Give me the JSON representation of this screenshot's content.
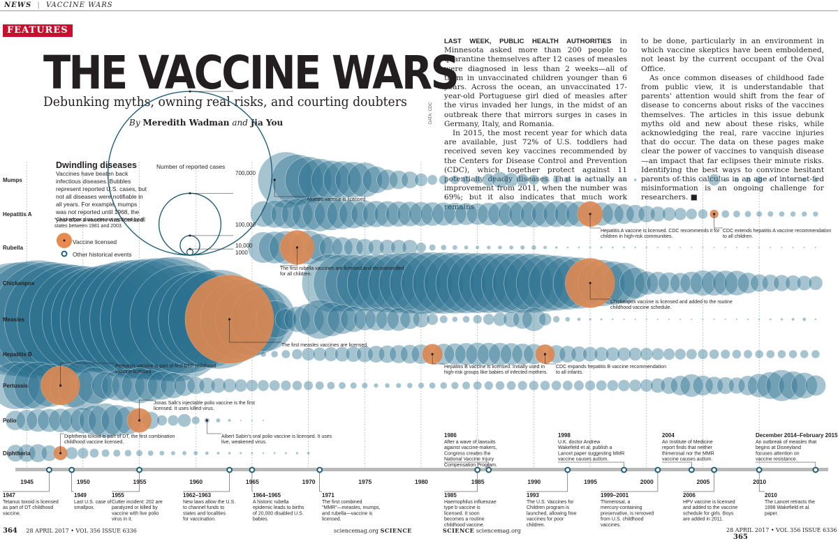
{
  "topbar": {
    "section": "NEWS",
    "divider": "|",
    "title": "VACCINE WARS"
  },
  "feature_tag": "FEATURES",
  "headline": "THE VACCINE WARS",
  "deck": "Debunking myths, owning real risks, and courting doubters",
  "byline": {
    "by": "By",
    "author1": "Meredith Wadman",
    "and": "and",
    "author2": "Jia You"
  },
  "body": {
    "lead_in": "LAST WEEK, PUBLIC HEALTH AUTHORITIES",
    "col1_p1_rest": " in Minnesota asked more than 200 people to quarantine themselves after 12 cases of measles were diagnosed in less than 2 weeks—all of them in unvaccinated children younger than 6 years. Across the ocean, an unvaccinated 17-year-old Portuguese girl died of measles after the virus invaded her lungs, in the midst of an outbreak there that mirrors surges in cases in Germany, Italy, and Romania.",
    "col1_p2": "In 2015, the most recent year for which data are available, just 72% of U.S. toddlers had received seven key vaccines recommended by the Centers for Disease Control and Prevention (CDC), which together protect against 11 potentially deadly diseases. That is actually an improvement from 2011, when the number was 69%; but it also indicates that much work remains",
    "col2_p1": "to be done, particularly in an environment in which vaccine skeptics have been emboldened, not least by the current occupant of the Oval Office.",
    "col2_p2": "As once common diseases of childhood fade from public view, it is understandable that parents' attention would shift from the fear of disease to concerns about risks of the vaccines themselves. The articles in this issue debunk myths old and new about these risks, while acknowledging the real, rare vaccine injuries that do occur. The data on these pages make clear the power of vaccines to vanquish disease—an impact that far eclipses their minute risks. Identifying the best ways to convince hesitant parents of this calculus in an age of internet-fed misinformation is an ongoing challenge for researchers.",
    "end_mark": "■",
    "credit": "DATA: CDC"
  },
  "legend": {
    "title": "Dwindling diseases",
    "description": "Vaccines have beaten back infectious diseases. Bubbles represent reported U.S. cases, but not all diseases were notifiable in all years. For example, mumps was not reported until 1968, the year after a vaccine was licensed.",
    "note": "*Chickenpox data were not reported by all states between 1981 and 2003.",
    "size_key_title": "Number of reported cases",
    "size_key_labels": [
      "700,000",
      "100,000",
      "10,000",
      "1000"
    ],
    "licensed_label": "Vaccine licensed",
    "events_label": "Other historical events"
  },
  "colors": {
    "bubble": "#2c6f8f",
    "bubble_light": "#a9c6d3",
    "licensed": "#e8894e",
    "timeline": "#b9b9b9",
    "event_ring": "#1f5f7a",
    "dashline": "#8fa9b6"
  },
  "footer": {
    "left_page": "364",
    "left_issue": "28 APRIL 2017 • VOL 356 ISSUE 6336",
    "left_site": "sciencemag.org",
    "left_brand": "SCIENCE",
    "right_brand": "SCIENCE",
    "right_site": "sciencemag.org",
    "right_issue": "28 APRIL 2017 • VOL 356 ISSUE 6336",
    "right_page": "365"
  },
  "chart_data": {
    "type": "scatter",
    "title": "Dwindling diseases",
    "x_range": [
      1944,
      2016
    ],
    "x_ticks": [
      1945,
      1950,
      1955,
      1960,
      1965,
      1970,
      1975,
      1980,
      1985,
      1990,
      1995,
      2000,
      2005,
      2010
    ],
    "size_scale_cases": [
      700000,
      100000,
      10000,
      1000
    ],
    "diseases": [
      {
        "name": "Mumps",
        "start": 1968,
        "end": 2015,
        "anchors": [
          [
            1968,
            152209
          ],
          [
            1970,
            104953
          ],
          [
            1972,
            74215
          ],
          [
            1975,
            59647
          ],
          [
            1977,
            21436
          ],
          [
            1979,
            14255
          ],
          [
            1981,
            4941
          ],
          [
            1985,
            2982
          ],
          [
            1986,
            7790
          ],
          [
            1987,
            12848
          ],
          [
            1990,
            5292
          ],
          [
            1993,
            1692
          ],
          [
            1996,
            751
          ],
          [
            2000,
            338
          ],
          [
            2005,
            314
          ],
          [
            2006,
            6584
          ],
          [
            2007,
            800
          ],
          [
            2010,
            2612
          ],
          [
            2012,
            229
          ],
          [
            2014,
            1223
          ],
          [
            2015,
            1329
          ]
        ]
      },
      {
        "name": "Hepatitis A",
        "start": 1966,
        "end": 2015,
        "anchors": [
          [
            1966,
            32859
          ],
          [
            1971,
            59606
          ],
          [
            1975,
            35855
          ],
          [
            1980,
            29087
          ],
          [
            1985,
            23210
          ],
          [
            1989,
            35821
          ],
          [
            1995,
            31582
          ],
          [
            1999,
            17047
          ],
          [
            2003,
            7653
          ],
          [
            2006,
            3579
          ],
          [
            2010,
            1670
          ],
          [
            2015,
            1390
          ]
        ]
      },
      {
        "name": "Rubella",
        "start": 1966,
        "end": 2015,
        "anchors": [
          [
            1966,
            46975
          ],
          [
            1969,
            57686
          ],
          [
            1970,
            56552
          ],
          [
            1972,
            25507
          ],
          [
            1976,
            12491
          ],
          [
            1979,
            11795
          ],
          [
            1981,
            2077
          ],
          [
            1985,
            630
          ],
          [
            1990,
            1125
          ],
          [
            1993,
            192
          ],
          [
            1996,
            238
          ],
          [
            2000,
            176
          ],
          [
            2004,
            10
          ],
          [
            2010,
            5
          ],
          [
            2015,
            5
          ]
        ]
      },
      {
        "name": "Chickenpox",
        "start": 1972,
        "end": 2015,
        "anchors": [
          [
            1972,
            164114
          ],
          [
            1975,
            154248
          ],
          [
            1980,
            190894
          ],
          [
            1985,
            178162
          ],
          [
            1990,
            173099
          ],
          [
            1995,
            120624
          ],
          [
            1998,
            82455
          ],
          [
            2000,
            27382
          ],
          [
            2003,
            20948
          ],
          [
            2005,
            32242
          ],
          [
            2008,
            30386
          ],
          [
            2010,
            15427
          ],
          [
            2012,
            13304
          ],
          [
            2015,
            9789
          ]
        ]
      },
      {
        "name": "Measles",
        "start": 1944,
        "end": 2015,
        "anchors": [
          [
            1944,
            630291
          ],
          [
            1946,
            683077
          ],
          [
            1948,
            615104
          ],
          [
            1951,
            530118
          ],
          [
            1954,
            683077
          ],
          [
            1958,
            763094
          ],
          [
            1960,
            441703
          ],
          [
            1962,
            481530
          ],
          [
            1963,
            385156
          ],
          [
            1965,
            261904
          ],
          [
            1966,
            204136
          ],
          [
            1968,
            22231
          ],
          [
            1970,
            47351
          ],
          [
            1971,
            75290
          ],
          [
            1975,
            24374
          ],
          [
            1978,
            26871
          ],
          [
            1980,
            13506
          ],
          [
            1983,
            1497
          ],
          [
            1986,
            6282
          ],
          [
            1989,
            18193
          ],
          [
            1990,
            27786
          ],
          [
            1992,
            2237
          ],
          [
            1995,
            309
          ],
          [
            2000,
            86
          ],
          [
            2005,
            66
          ],
          [
            2008,
            140
          ],
          [
            2011,
            220
          ],
          [
            2014,
            667
          ],
          [
            2015,
            188
          ]
        ]
      },
      {
        "name": "Hepatitis B",
        "start": 1966,
        "end": 2015,
        "anchors": [
          [
            1966,
            1497
          ],
          [
            1970,
            8310
          ],
          [
            1975,
            13121
          ],
          [
            1980,
            19015
          ],
          [
            1985,
            26611
          ],
          [
            1987,
            25916
          ],
          [
            1990,
            21102
          ],
          [
            1995,
            10805
          ],
          [
            2000,
            8036
          ],
          [
            2005,
            5119
          ],
          [
            2010,
            3350
          ],
          [
            2015,
            3370
          ]
        ]
      },
      {
        "name": "Pertussis",
        "start": 1944,
        "end": 2015,
        "anchors": [
          [
            1944,
            109873
          ],
          [
            1946,
            109860
          ],
          [
            1948,
            74715
          ],
          [
            1950,
            120718
          ],
          [
            1952,
            37129
          ],
          [
            1955,
            62786
          ],
          [
            1958,
            32148
          ],
          [
            1960,
            14809
          ],
          [
            1965,
            6799
          ],
          [
            1970,
            4249
          ],
          [
            1975,
            1738
          ],
          [
            1976,
            1010
          ],
          [
            1980,
            1730
          ],
          [
            1985,
            3589
          ],
          [
            1990,
            4570
          ],
          [
            1995,
            5137
          ],
          [
            2000,
            7867
          ],
          [
            2004,
            25827
          ],
          [
            2006,
            15632
          ],
          [
            2008,
            13278
          ],
          [
            2010,
            27550
          ],
          [
            2012,
            48277
          ],
          [
            2014,
            32971
          ],
          [
            2015,
            20762
          ]
        ]
      },
      {
        "name": "Polio",
        "start": 1944,
        "end": 1966,
        "anchors": [
          [
            1944,
            19029
          ],
          [
            1946,
            25698
          ],
          [
            1948,
            27726
          ],
          [
            1950,
            33300
          ],
          [
            1952,
            57879
          ],
          [
            1954,
            38476
          ],
          [
            1955,
            28985
          ],
          [
            1956,
            15140
          ],
          [
            1957,
            5485
          ],
          [
            1958,
            5787
          ],
          [
            1959,
            8425
          ],
          [
            1960,
            3190
          ],
          [
            1961,
            1312
          ],
          [
            1962,
            910
          ],
          [
            1963,
            449
          ],
          [
            1964,
            122
          ],
          [
            1965,
            72
          ],
          [
            1966,
            113
          ]
        ]
      },
      {
        "name": "Diphtheria",
        "start": 1944,
        "end": 1970,
        "anchors": [
          [
            1944,
            14150
          ],
          [
            1946,
            16354
          ],
          [
            1948,
            9493
          ],
          [
            1950,
            5796
          ],
          [
            1952,
            2960
          ],
          [
            1955,
            1984
          ],
          [
            1958,
            918
          ],
          [
            1960,
            918
          ],
          [
            1962,
            444
          ],
          [
            1964,
            293
          ],
          [
            1966,
            209
          ],
          [
            1968,
            260
          ],
          [
            1970,
            435
          ]
        ]
      }
    ],
    "vaccine_licensed": [
      {
        "disease": "Mumps",
        "year": 1967,
        "label": "Mumps vaccine is licensed.",
        "marker": "dot"
      },
      {
        "disease": "Hepatitis A",
        "year": 1995,
        "label": "Hepatitis A vaccine is licensed. CDC recommends it for children in high-risk communities."
      },
      {
        "disease": "Hepatitis A",
        "year": 2006,
        "label": "CDC extends hepatitis A vaccine recommendation to all children."
      },
      {
        "disease": "Rubella",
        "year": 1969,
        "label": "The first rubella vaccines are licensed and recommended for all children."
      },
      {
        "disease": "Chickenpox",
        "year": 1995,
        "label": "Chickenpox vaccine is licensed and added to the routine childhood vaccine schedule."
      },
      {
        "disease": "Measles",
        "year": 1963,
        "label": "The first measles vaccines are licensed."
      },
      {
        "disease": "Hepatitis B",
        "year": 1981,
        "label": "Hepatitis B vaccine is licensed. Initially used in high-risk groups like babies of infected mothers."
      },
      {
        "disease": "Hepatitis B",
        "year": 1991,
        "label": "CDC expands hepatitis B vaccine recommendation to all infants."
      },
      {
        "disease": "Pertussis",
        "year": 1948,
        "label": "Pertussis vaccine is part of first DTP childhood vaccine licensed."
      },
      {
        "disease": "Polio",
        "year": 1955,
        "label": "Jonas Salk's injectable polio vaccine is the first licensed. It uses killed virus."
      },
      {
        "disease": "Polio",
        "year": 1961,
        "label": "Albert Sabin's oral polio vaccine is licensed. It uses live, weakened virus.",
        "marker": "dot"
      },
      {
        "disease": "Diphtheria",
        "year": 1948,
        "label": "Diphtheria toxoid is part of DT, the first combination childhood vaccine licensed."
      }
    ],
    "historical_events": [
      {
        "year": 1947,
        "date": "1947",
        "text": "Tetanus toxoid is licensed as part of DT childhood vaccine."
      },
      {
        "year": 1949,
        "date": "1949",
        "text": "Last U.S. case of smallpox."
      },
      {
        "year": 1955,
        "date": "1955",
        "text": "Cutter incident: 202 are paralyzed or killed by vaccine with live polio virus in it."
      },
      {
        "year": 1963,
        "date": "1962–1963",
        "text": "New laws allow the U.S. to channel funds to states and localities for vaccination."
      },
      {
        "year": 1965,
        "date": "1964–1965",
        "text": "A historic rubella epidemic leads to births of 20,000 disabled U.S. babies."
      },
      {
        "year": 1971,
        "date": "1971",
        "text": "The first combined \"MMR\"—measles, mumps, and rubella—vaccine is licensed."
      },
      {
        "year": 1985,
        "date": "1985",
        "text": "Haemophilus influenzae type b vaccine is licensed. It soon becomes a routine childhood vaccine."
      },
      {
        "year": 1986,
        "date": "1986",
        "text": "After a wave of lawsuits against vaccine-makers, Congress creates the National Vaccine Injury Compensation Program."
      },
      {
        "year": 1993,
        "date": "1993",
        "text": "The U.S. Vaccines for Children program is launched, allowing free vaccines for poor children."
      },
      {
        "year": 1998,
        "date": "1998",
        "text": "U.K. doctor Andrew Wakefield et al. publish a Lancet paper suggesting MMR vaccine causes autism."
      },
      {
        "year": 2001,
        "date": "1999–2001",
        "text": "Thimerosal, a mercury-containing preservative, is removed from U.S. childhood vaccines."
      },
      {
        "year": 2004,
        "date": "2004",
        "text": "An Institute of Medicine report finds that neither thimerosal nor the MMR vaccine causes autism."
      },
      {
        "year": 2006,
        "date": "2006",
        "text": "HPV vaccine is licensed and added to the vaccine schedule for girls. Boys are added in 2011."
      },
      {
        "year": 2010,
        "date": "2010",
        "text": "The Lancet retracts the 1998 Wakefield et al. paper."
      },
      {
        "year": 2015,
        "date": "December 2014–February 2015",
        "text": "An outbreak of measles that begins at Disneyland focuses attention on vaccine resistance."
      }
    ]
  }
}
